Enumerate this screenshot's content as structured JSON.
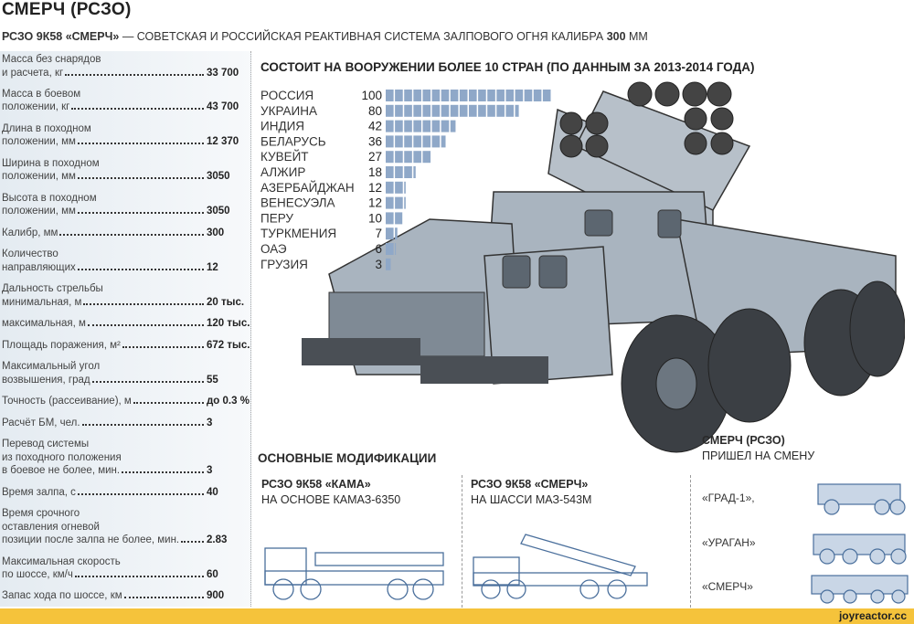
{
  "header": {
    "title": "СМЕРЧ (РСЗО)",
    "subtitle_bold": "РСЗО 9К58 «СМЕРЧ»",
    "subtitle_text": " — СОВЕТСКАЯ И РОССИЙСКАЯ РЕАКТИВНАЯ СИСТЕМА ЗАЛПОВОГО ОГНЯ КАЛИБРА ",
    "subtitle_caliber": "300",
    "subtitle_unit": " ММ"
  },
  "specs": [
    {
      "lines": [
        "Масса без снарядов"
      ],
      "last": "и расчета, кг",
      "value": "33 700"
    },
    {
      "lines": [
        "Масса в боевом"
      ],
      "last": "положении, кг",
      "value": "43 700"
    },
    {
      "lines": [
        "Длина в походном"
      ],
      "last": "положении, мм",
      "value": "12 370"
    },
    {
      "lines": [
        "Ширина в походном"
      ],
      "last": "положении, мм",
      "value": "3050"
    },
    {
      "lines": [
        "Высота в походном"
      ],
      "last": "положении, мм",
      "value": "3050"
    },
    {
      "lines": [],
      "last": "Калибр, мм",
      "value": "300"
    },
    {
      "lines": [
        "Количество"
      ],
      "last": "направляющих",
      "value": "12"
    },
    {
      "lines": [
        "Дальность стрельбы"
      ],
      "last": "минимальная, м",
      "value": "20 тыс."
    },
    {
      "lines": [],
      "last": "максимальная, м",
      "value": "120 тыс."
    },
    {
      "lines": [],
      "last": "Площадь поражения, м²",
      "value": "672 тыс."
    },
    {
      "lines": [
        "Максимальный угол"
      ],
      "last": "возвышения, град",
      "value": "55"
    },
    {
      "lines": [],
      "last": "Точность (рассеивание), м",
      "value": "до 0.3 %"
    },
    {
      "lines": [],
      "last": "Расчёт БМ, чел.",
      "value": "3"
    },
    {
      "lines": [
        "Перевод системы",
        "из походного положения"
      ],
      "last": "в боевое не более, мин.",
      "value": "3"
    },
    {
      "lines": [],
      "last": "Время залпа, с",
      "value": "40"
    },
    {
      "lines": [
        "Время срочного",
        "оставления огневой"
      ],
      "last": "позиции после залпа не более, мин.",
      "value": "2.83"
    },
    {
      "lines": [
        "Максимальная скорость"
      ],
      "last": "по шоссе, км/ч",
      "value": "60"
    },
    {
      "lines": [],
      "last": "Запас хода по шоссе, км",
      "value": "900"
    }
  ],
  "chart_data": {
    "type": "bar",
    "orientation": "horizontal",
    "title": "СОСТОИТ НА ВООРУЖЕНИИ БОЛЕЕ 10 СТРАН (ПО ДАННЫМ ЗА 2013-2014 ГОДА)",
    "categories": [
      "РОССИЯ",
      "УКРАИНА",
      "ИНДИЯ",
      "БЕЛАРУСЬ",
      "КУВЕЙТ",
      "АЛЖИР",
      "АЗЕРБАЙДЖАН",
      "ВЕНЕСУЭЛА",
      "ПЕРУ",
      "ТУРКМЕНИЯ",
      "ОАЭ",
      "ГРУЗИЯ"
    ],
    "values": [
      100,
      80,
      42,
      36,
      27,
      18,
      12,
      12,
      10,
      7,
      6,
      3
    ],
    "xlim": [
      0,
      100
    ],
    "bar_color": "#8fa8c8",
    "grid": false
  },
  "modifications": {
    "title": "ОСНОВНЫЕ МОДИФИКАЦИИ",
    "items": [
      {
        "name": "РСЗО 9К58 «КАМА»",
        "desc": "НА ОСНОВЕ КАМАЗ-6350"
      },
      {
        "name": "РСЗО 9К58 «СМЕРЧ»",
        "desc": "НА ШАССИ МАЗ-543М"
      }
    ]
  },
  "replacement": {
    "title": "СМЕРЧ (РСЗО)",
    "subtitle": "ПРИШЕЛ НА СМЕНУ",
    "items": [
      "«ГРАД-1»,",
      "«УРАГАН»",
      "«СМЕРЧ»"
    ]
  },
  "colors": {
    "footer": "#f5c33b",
    "vehicle": "#a9b4bf",
    "drawing": "#4a6f9c"
  },
  "footer": {
    "brand": "joyreactor.cc"
  }
}
